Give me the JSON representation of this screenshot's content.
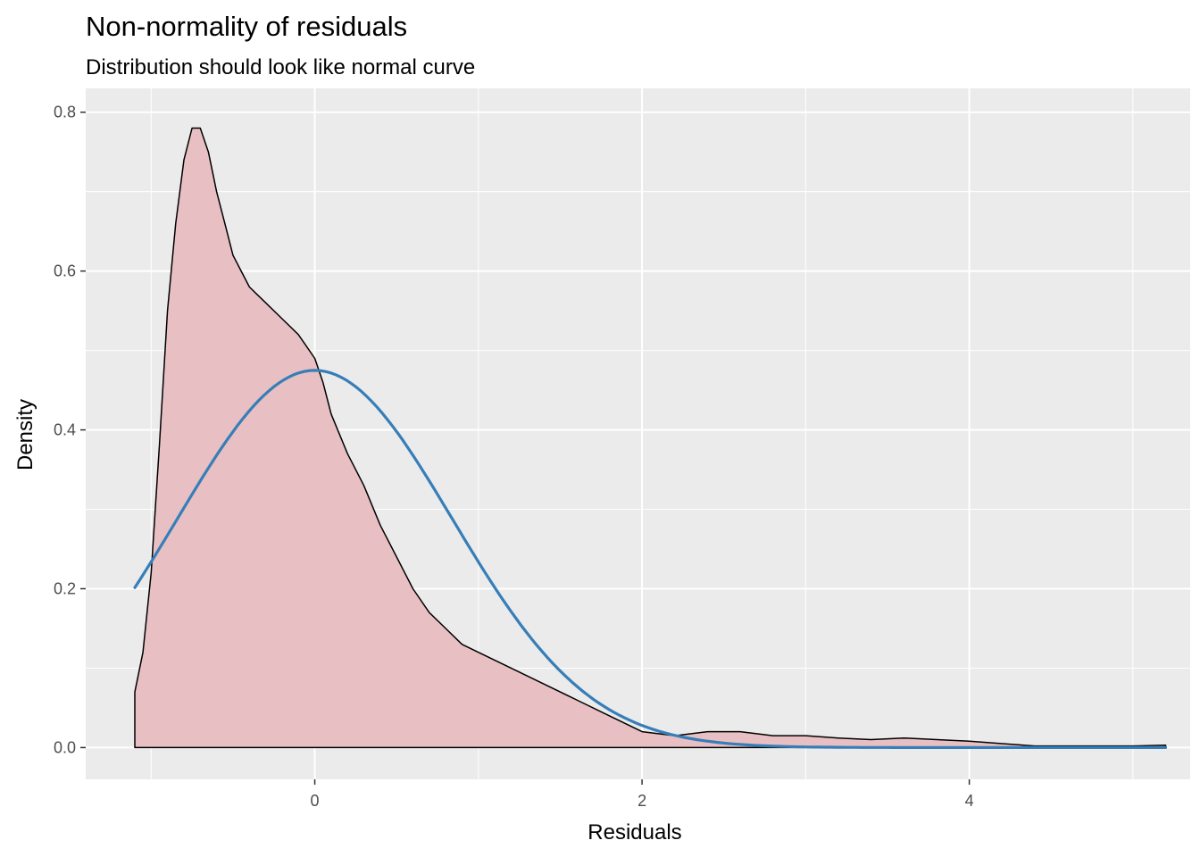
{
  "chart_data": {
    "type": "area",
    "title": "Non-normality of residuals",
    "subtitle": "Distribution should look like normal curve",
    "xlabel": "Residuals",
    "ylabel": "Density",
    "xlim": [
      -1.4,
      5.35
    ],
    "ylim": [
      -0.04,
      0.83
    ],
    "x_ticks": [
      0,
      2,
      4
    ],
    "x_tick_labels": [
      "0",
      "2",
      "4"
    ],
    "y_ticks": [
      0.0,
      0.2,
      0.4,
      0.6,
      0.8
    ],
    "y_tick_labels": [
      "0.0",
      "0.2",
      "0.4",
      "0.6",
      "0.8"
    ],
    "grid": true,
    "panel_background": "#ebebeb",
    "series": [
      {
        "kind": "density_area",
        "fill": "#e8c0c3",
        "stroke": "#000000",
        "x": [
          -1.1,
          -1.1,
          -1.05,
          -1.0,
          -0.95,
          -0.9,
          -0.85,
          -0.8,
          -0.75,
          -0.7,
          -0.65,
          -0.6,
          -0.55,
          -0.5,
          -0.45,
          -0.4,
          -0.35,
          -0.3,
          -0.2,
          -0.1,
          0.0,
          0.05,
          0.1,
          0.2,
          0.3,
          0.4,
          0.5,
          0.6,
          0.7,
          0.8,
          0.9,
          1.0,
          1.2,
          1.4,
          1.6,
          1.8,
          2.0,
          2.2,
          2.4,
          2.6,
          2.8,
          3.0,
          3.2,
          3.4,
          3.6,
          3.8,
          4.0,
          4.2,
          4.4,
          4.6,
          4.8,
          5.0,
          5.2,
          5.2
        ],
        "y": [
          0.0,
          0.07,
          0.12,
          0.22,
          0.38,
          0.55,
          0.66,
          0.74,
          0.78,
          0.78,
          0.75,
          0.7,
          0.66,
          0.62,
          0.6,
          0.58,
          0.57,
          0.56,
          0.54,
          0.52,
          0.49,
          0.46,
          0.42,
          0.37,
          0.33,
          0.28,
          0.24,
          0.2,
          0.17,
          0.15,
          0.13,
          0.12,
          0.1,
          0.08,
          0.06,
          0.04,
          0.02,
          0.015,
          0.02,
          0.02,
          0.015,
          0.015,
          0.012,
          0.01,
          0.012,
          0.01,
          0.008,
          0.005,
          0.002,
          0.002,
          0.002,
          0.002,
          0.003,
          0.0
        ]
      },
      {
        "kind": "normal_curve",
        "stroke": "#377eb8",
        "mean": 0.0,
        "sd": 0.84,
        "x_range": [
          -1.1,
          5.2
        ]
      }
    ]
  }
}
